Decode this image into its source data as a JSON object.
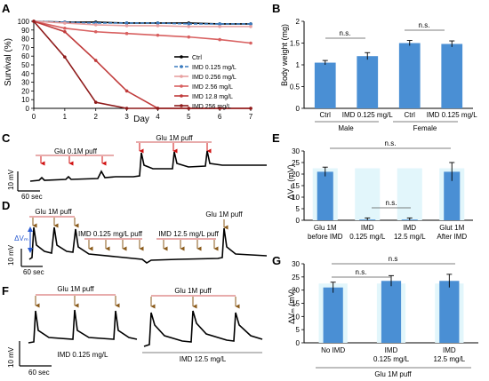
{
  "panels": {
    "A": {
      "letter": "A",
      "ylabel": "Survival (%)",
      "xlabel": "Day",
      "xticks": [
        "0",
        "1",
        "2",
        "3",
        "4",
        "5",
        "6",
        "7"
      ],
      "yticks": [
        "0",
        "10",
        "20",
        "30",
        "40",
        "50",
        "60",
        "70",
        "80",
        "90",
        "100"
      ]
    },
    "B": {
      "letter": "B",
      "ylabel": "Body weight  (mg)",
      "ns1": "n.s.",
      "ns2": "n.s.",
      "group_male": "Male",
      "group_female": "Female",
      "yticks": [
        "0",
        "0.5",
        "1",
        "1.5",
        "2"
      ]
    },
    "C": {
      "letter": "C",
      "puff1": "Glu 0.1M puff",
      "puff2": "Glu 1M puff",
      "scale_v": "10 mV",
      "scale_t": "60 sec"
    },
    "D": {
      "letter": "D",
      "puff1": "Glu 1M puff",
      "puff2": "IMD 0.125 mg/L puff",
      "puff3": "IMD 12.5 mg/L puff",
      "puff4": "Glu 1M puff",
      "dvm": "ΔVₘ",
      "scale_v": "10 mV",
      "scale_t": "60 sec"
    },
    "E": {
      "letter": "E",
      "ylabel": "ΔVₘ (mV)",
      "ns_top": "n.s.",
      "ns_mid": "n.s.",
      "yticks": [
        "0",
        "5",
        "10",
        "15",
        "20",
        "25",
        "30"
      ],
      "cat_line1": [
        "Glu 1M",
        "IMD",
        "IMD",
        "Glut 1M"
      ],
      "cat_line2": [
        "before IMD",
        "0.125 mg/L",
        "12.5 mg/L",
        "After IMD"
      ]
    },
    "F": {
      "letter": "F",
      "puff1": "Glu 1M puff",
      "puff2": "Glu 1M puff",
      "cond1": "IMD 0.125 mg/L",
      "cond2": "IMD 12.5 mg/L",
      "scale_v": "10 mV",
      "scale_t": "60 sec"
    },
    "G": {
      "letter": "G",
      "ylabel": "ΔVₘ (mV)",
      "ns_top": "n.s",
      "ns_mid": "n.s.",
      "yticks": [
        "0",
        "5",
        "10",
        "15",
        "20",
        "25",
        "30"
      ],
      "cat_line1": [
        "No IMD",
        "IMD",
        "IMD"
      ],
      "cat_line2": [
        "",
        "0.125 mg/L",
        "12.5 mg/L"
      ],
      "footer": "Glu 1M puff"
    }
  },
  "chart_data": [
    {
      "panel": "A",
      "type": "line",
      "xlabel": "Day",
      "ylabel": "Survival (%)",
      "xlim": [
        0,
        7
      ],
      "ylim": [
        0,
        100
      ],
      "legend_position": "right-center",
      "x": [
        0,
        1,
        2,
        3,
        4,
        5,
        6,
        7
      ],
      "series": [
        {
          "name": "Ctrl",
          "color": "#000000",
          "values": [
            100,
            99,
            99,
            98,
            98,
            98,
            97,
            97
          ]
        },
        {
          "name": "IMD  0.125 mg/L",
          "color": "#3a7bbf",
          "values": [
            100,
            99,
            98,
            98,
            98,
            97,
            97,
            97
          ]
        },
        {
          "name": "IMD  0.256 mg/L",
          "color": "#e8a0a0",
          "values": [
            100,
            98,
            96,
            95,
            95,
            94,
            94,
            94
          ]
        },
        {
          "name": "IMD  2.56 mg/L",
          "color": "#d86060",
          "values": [
            100,
            92,
            88,
            86,
            84,
            82,
            79,
            75
          ]
        },
        {
          "name": "IMD  12.8 mg/L",
          "color": "#c03a3a",
          "values": [
            100,
            88,
            55,
            20,
            0,
            0,
            0,
            0
          ]
        },
        {
          "name": "IMD  256 mg/L",
          "color": "#8e1a1a",
          "values": [
            100,
            59,
            7,
            0,
            0,
            0,
            0,
            0
          ]
        }
      ]
    },
    {
      "panel": "B",
      "type": "bar",
      "ylabel": "Body weight  (mg)",
      "ylim": [
        0,
        2
      ],
      "categories": [
        "Ctrl",
        "IMD 0.125 mg/L",
        "Ctrl",
        "IMD 0.125 mg/L"
      ],
      "groups": [
        "Male",
        "Male",
        "Female",
        "Female"
      ],
      "values": [
        1.05,
        1.2,
        1.5,
        1.48
      ],
      "errors": [
        0.05,
        0.08,
        0.06,
        0.07
      ],
      "color": "#4a8fd4"
    },
    {
      "panel": "E",
      "type": "bar",
      "ylabel": "ΔVₘ (mV)",
      "ylim": [
        0,
        30
      ],
      "categories": [
        "Glu 1M before IMD",
        "IMD 0.125 mg/L",
        "IMD 12.5 mg/L",
        "Glut 1M After IMD"
      ],
      "values": [
        21,
        0.3,
        0.3,
        21
      ],
      "errors": [
        2,
        0.7,
        0.7,
        4
      ],
      "color": "#4a8fd4"
    },
    {
      "panel": "G",
      "type": "bar",
      "ylabel": "ΔVₘ (mV)",
      "ylim": [
        0,
        30
      ],
      "categories": [
        "No IMD",
        "IMD 0.125 mg/L",
        "IMD 12.5 mg/L"
      ],
      "values": [
        21,
        23.5,
        23.5
      ],
      "errors": [
        2,
        2,
        2.5
      ],
      "color": "#4a8fd4"
    }
  ]
}
